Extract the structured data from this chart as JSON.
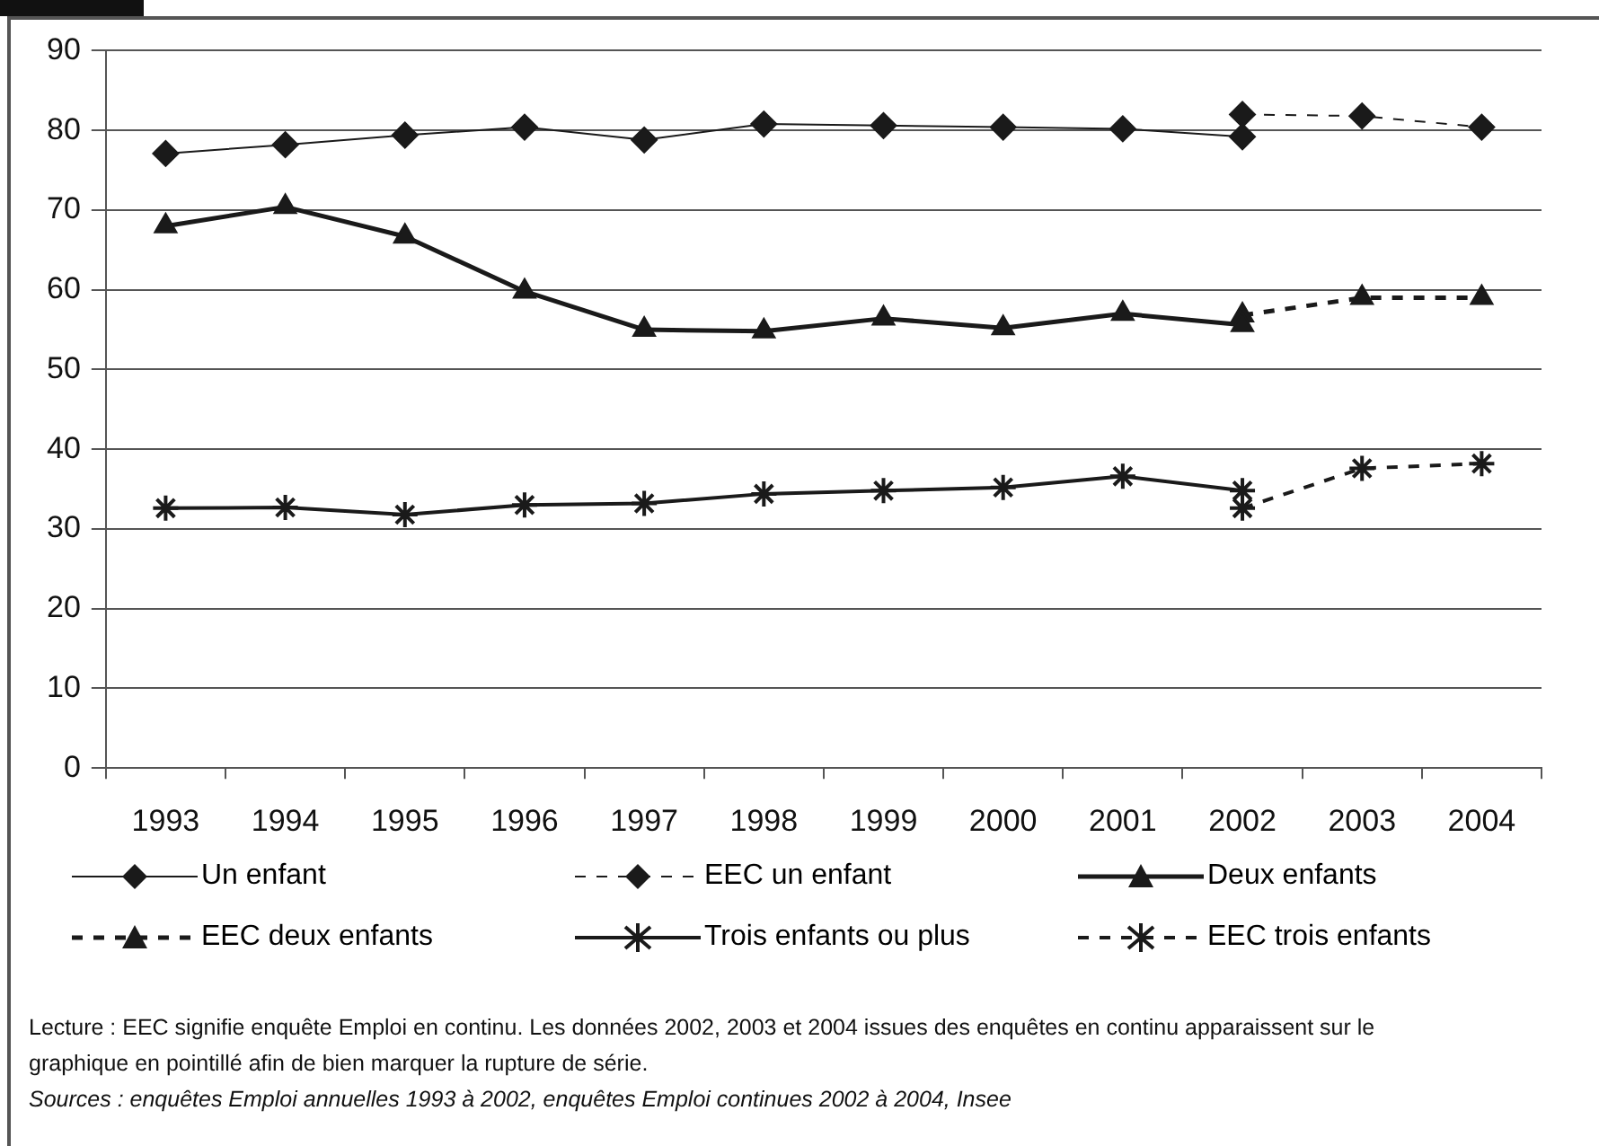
{
  "chart_data": {
    "type": "line",
    "categories": [
      "1993",
      "1994",
      "1995",
      "1996",
      "1997",
      "1998",
      "1999",
      "2000",
      "2001",
      "2002",
      "2003",
      "2004"
    ],
    "series": [
      {
        "name": "Un enfant",
        "color": "#1a1a1a",
        "marker": "diamond",
        "line_style": "solid",
        "values": [
          77.1,
          78.2,
          79.4,
          80.4,
          78.8,
          80.8,
          80.6,
          80.4,
          80.2,
          79.2,
          null,
          null
        ]
      },
      {
        "name": "EEC un enfant",
        "color": "#1a1a1a",
        "marker": "diamond",
        "line_style": "dashed",
        "values": [
          null,
          null,
          null,
          null,
          null,
          null,
          null,
          null,
          null,
          82.0,
          81.8,
          80.4
        ]
      },
      {
        "name": "Deux enfants",
        "color": "#1a1a1a",
        "marker": "triangle",
        "line_style": "solid",
        "values": [
          68.0,
          70.4,
          66.7,
          59.8,
          55.0,
          54.8,
          56.4,
          55.2,
          57.0,
          55.6,
          null,
          null
        ]
      },
      {
        "name": "EEC deux enfants",
        "color": "#1a1a1a",
        "marker": "triangle",
        "line_style": "dashed",
        "values": [
          null,
          null,
          null,
          null,
          null,
          null,
          null,
          null,
          null,
          56.8,
          59.0,
          59.0
        ]
      },
      {
        "name": "Trois enfants ou plus",
        "color": "#1a1a1a",
        "marker": "cross",
        "line_style": "solid",
        "values": [
          32.6,
          32.7,
          31.8,
          33.0,
          33.2,
          34.4,
          34.8,
          35.2,
          36.6,
          34.8,
          null,
          null
        ]
      },
      {
        "name": "EEC trois enfants",
        "color": "#1a1a1a",
        "marker": "cross",
        "line_style": "dashed",
        "values": [
          null,
          null,
          null,
          null,
          null,
          null,
          null,
          null,
          null,
          32.6,
          37.6,
          38.2
        ]
      }
    ],
    "ylim": [
      0,
      90
    ],
    "yticks": [
      0,
      10,
      20,
      30,
      40,
      50,
      60,
      70,
      80,
      90
    ],
    "grid": "y",
    "legend": "bottom",
    "annotations": [
      "Lecture : EEC signifie enquête Emploi en continu. Les données 2002, 2003 et 2004 issues des enquêtes en continu apparaissent sur le graphique en pointillé afin de bien marquer la rupture de série.",
      "Sources : enquêtes Emploi  annuelles 1993 à 2002,  enquêtes Emploi continues 2002 à 2004, Insee"
    ]
  }
}
